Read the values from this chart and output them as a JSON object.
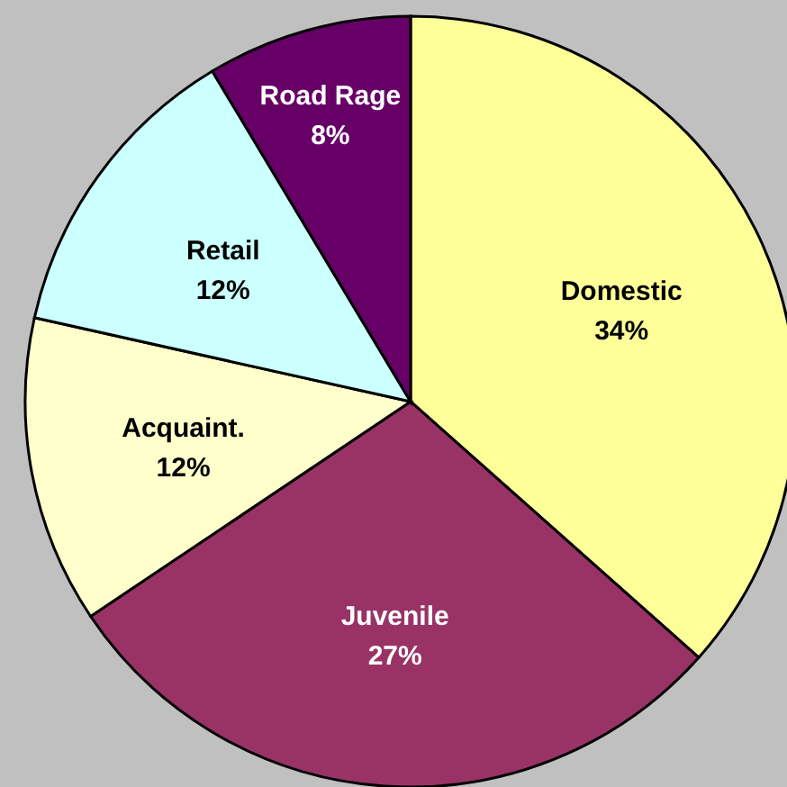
{
  "chart_data": {
    "type": "pie",
    "categories": [
      "Domestic",
      "Juvenile",
      "Acquaint.",
      "Retail",
      "Road Rage"
    ],
    "values": [
      34,
      27,
      12,
      12,
      8
    ],
    "colors": [
      "#ffff99",
      "#993366",
      "#ffffcc",
      "#ccffff",
      "#660066"
    ],
    "value_labels": [
      "34%",
      "27%",
      "12%",
      "12%",
      "8%"
    ],
    "legend": false
  }
}
